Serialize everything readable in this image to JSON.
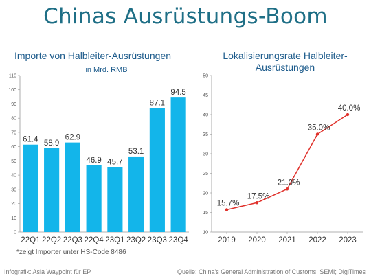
{
  "title": "Chinas Ausrüstungs-Boom",
  "footnote": "*zeigt Importer unter HS-Code 8486",
  "credit_left": "Infografik: Asia Waypoint für EP",
  "credit_right": "Quelle: China's General Administration of Customs; SEMI; DigiTimes",
  "colors": {
    "bar": "#13b5ea",
    "line": "#e0302a",
    "title": "#1f6f86",
    "chart_title": "#1e5c8c"
  },
  "chart_data": [
    {
      "type": "bar",
      "title": "Importe von Halbleiter-Ausrüstungen",
      "subtitle": "in Mrd. RMB",
      "categories": [
        "22Q1",
        "22Q2",
        "22Q3",
        "22Q4",
        "23Q1",
        "23Q2",
        "23Q3",
        "23Q4"
      ],
      "values": [
        61.4,
        58.9,
        62.9,
        46.9,
        45.7,
        53.1,
        87.1,
        94.5
      ],
      "value_labels": [
        "61.4",
        "58.9",
        "62.9",
        "46.9",
        "45.7",
        "53.1",
        "87.1",
        "94.5"
      ],
      "ylim": [
        0,
        110
      ],
      "yticks": [
        "0",
        "10",
        "20",
        "30",
        "40",
        "50",
        "60",
        "70",
        "80",
        "90",
        "100",
        "110"
      ],
      "grid": false,
      "legend": "none"
    },
    {
      "type": "line",
      "title": "Lokalisierungsrate Halbleiter-Ausrüstungen",
      "categories": [
        "2019",
        "2020",
        "2021",
        "2022",
        "2023"
      ],
      "values": [
        15.7,
        17.5,
        21.0,
        35.0,
        40.0
      ],
      "value_labels": [
        "15.7%",
        "17.5%",
        "21.0%",
        "35.0%",
        "40.0%"
      ],
      "ylim": [
        10,
        50
      ],
      "yticks": [
        "10",
        "15",
        "20",
        "25",
        "30",
        "35",
        "40",
        "45",
        "50"
      ],
      "grid": false,
      "legend": "none"
    }
  ]
}
